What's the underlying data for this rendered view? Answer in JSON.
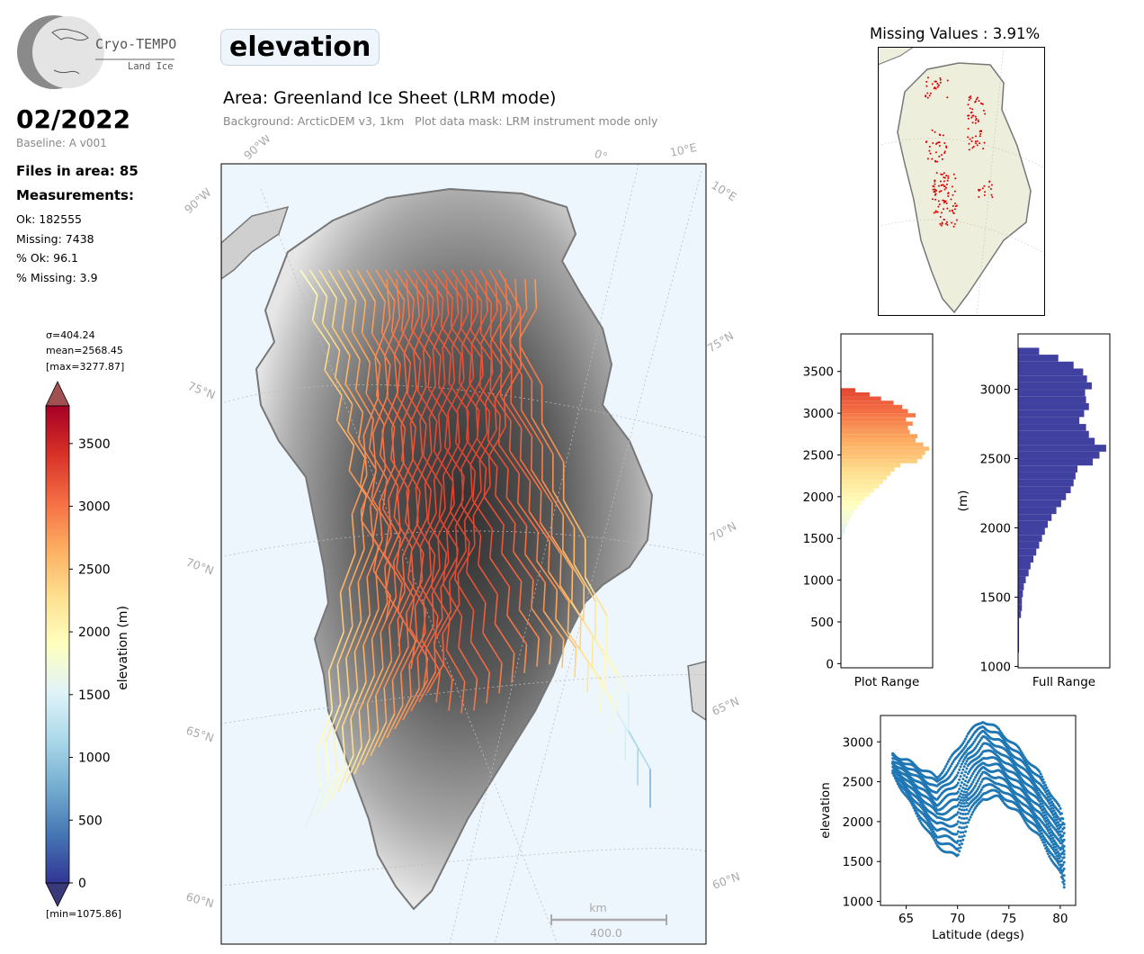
{
  "logo": {
    "title": "Cryo-TEMPO",
    "subtitle": "Land Ice"
  },
  "period": "02/2022",
  "baseline": "Baseline: A v001",
  "files_in_area": "Files in area: 85",
  "measurements_heading": "Measurements:",
  "stats": [
    "Ok: 182555",
    "Missing: 7438",
    "% Ok: 96.1",
    "% Missing: 3.9"
  ],
  "parameter": "elevation",
  "area_title": "Area: Greenland Ice Sheet (LRM mode)",
  "area_subtitle": "Background: ArcticDEM v3, 1km   Plot data mask: LRM instrument mode only",
  "colorbar": {
    "sigma": "σ=404.24",
    "mean": "mean=2568.45",
    "max": "[max=3277.87]",
    "min": "[min=1075.86]",
    "label": "elevation (m)",
    "ticks": [
      0,
      500,
      1000,
      1500,
      2000,
      2500,
      3000,
      3500
    ],
    "range": [
      0,
      3800
    ],
    "colors": [
      "#313695",
      "#4575b4",
      "#74add1",
      "#abd9e9",
      "#e0f3f8",
      "#ffffbf",
      "#fee090",
      "#fdae61",
      "#f46d43",
      "#d73027",
      "#a50026"
    ]
  },
  "map": {
    "lat_labels_left": [
      "75°N",
      "70°N",
      "65°N",
      "60°N"
    ],
    "lat_labels_right": [
      "75°N",
      "70°N",
      "65°N",
      "60°N"
    ],
    "lon_labels_top": [
      "90°W",
      "0°",
      "10°E"
    ],
    "lon_labels_left": [
      "90°W"
    ],
    "lon_labels_right": [
      "10°E"
    ],
    "scalebar_unit": "km",
    "scalebar_value": "400.0"
  },
  "missing_title": "Missing Values : 3.91%",
  "chart_data": [
    {
      "type": "bar",
      "orientation": "horizontal",
      "xlabel": "Plot Range",
      "ylim": [
        -50,
        3950
      ],
      "yticks": [
        0,
        500,
        1000,
        1500,
        2000,
        2500,
        3000,
        3500
      ],
      "bins": [
        1500,
        1550,
        1600,
        1650,
        1700,
        1750,
        1800,
        1850,
        1900,
        1950,
        2000,
        2050,
        2100,
        2150,
        2200,
        2250,
        2300,
        2350,
        2400,
        2450,
        2500,
        2550,
        2600,
        2650,
        2700,
        2750,
        2800,
        2850,
        2900,
        2950,
        3000,
        3050,
        3100,
        3150,
        3200,
        3250
      ],
      "values": [
        2,
        4,
        5,
        7,
        9,
        11,
        14,
        17,
        21,
        25,
        30,
        35,
        40,
        44,
        48,
        52,
        56,
        62,
        80,
        85,
        88,
        92,
        86,
        78,
        80,
        72,
        70,
        75,
        68,
        78,
        70,
        64,
        55,
        42,
        30,
        15
      ]
    },
    {
      "type": "bar",
      "orientation": "horizontal",
      "xlabel": "Full Range",
      "ylabel": "(m)",
      "ylim": [
        990,
        3400
      ],
      "yticks": [
        1000,
        1500,
        2000,
        2500,
        3000
      ],
      "bins": [
        1100,
        1150,
        1200,
        1250,
        1300,
        1350,
        1400,
        1450,
        1500,
        1550,
        1600,
        1650,
        1700,
        1750,
        1800,
        1850,
        1900,
        1950,
        2000,
        2050,
        2100,
        2150,
        2200,
        2250,
        2300,
        2350,
        2400,
        2450,
        2500,
        2550,
        2600,
        2650,
        2700,
        2750,
        2800,
        2850,
        2900,
        2950,
        3000,
        3050,
        3100,
        3150,
        3200,
        3250
      ],
      "values": [
        1,
        1,
        1,
        1,
        1,
        3,
        4,
        4,
        5,
        6,
        8,
        11,
        13,
        16,
        19,
        22,
        25,
        28,
        31,
        35,
        40,
        45,
        50,
        55,
        58,
        60,
        62,
        78,
        85,
        92,
        80,
        74,
        71,
        64,
        69,
        74,
        71,
        70,
        77,
        72,
        68,
        58,
        42,
        22
      ]
    },
    {
      "type": "scatter",
      "xlabel": "Latitude (degs)",
      "ylabel": "elevation",
      "xlim": [
        62.5,
        81.5
      ],
      "ylim": [
        950,
        3330
      ],
      "xticks": [
        65,
        70,
        75,
        80
      ],
      "yticks": [
        1000,
        1500,
        2000,
        2500,
        3000
      ],
      "color": "#1f77b4",
      "series_envelope": {
        "x": [
          63.7,
          66,
          68,
          70,
          71,
          72.5,
          74,
          76,
          78,
          80,
          80.5
        ],
        "upper": [
          2850,
          2700,
          2550,
          2900,
          3100,
          3270,
          3150,
          2900,
          2600,
          2150,
          1900
        ],
        "lower": [
          2600,
          2100,
          1700,
          1550,
          2000,
          2300,
          2300,
          2100,
          1800,
          1350,
          1100
        ]
      }
    }
  ]
}
